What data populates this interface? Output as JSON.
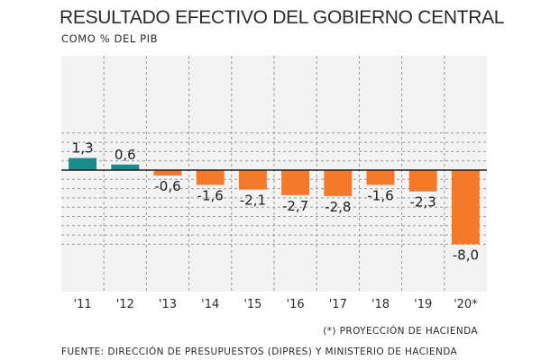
{
  "header": {
    "title": "RESULTADO EFECTIVO DEL GOBIERNO CENTRAL",
    "subtitle": "COMO % DEL PIB"
  },
  "footer": {
    "note": "(*) PROYECCIÓN DE HACIENDA",
    "source": "FUENTE: DIRECCIÓN DE PRESUPUESTOS (DIPRES) Y MINISTERIO DE HACIENDA"
  },
  "colors": {
    "positive": "#1a8a8a",
    "negative": "#f47a2a",
    "grid": "#9a9a9a",
    "zero_line": "#1e1e1e",
    "plot_bg": "#f3f3f3"
  },
  "chart_data": {
    "type": "bar",
    "title": "RESULTADO EFECTIVO DEL GOBIERNO CENTRAL",
    "subtitle": "COMO % DEL PIB",
    "xlabel": "",
    "ylabel": "",
    "categories": [
      "'11",
      "'12",
      "'13",
      "'14",
      "'15",
      "'16",
      "'17",
      "'18",
      "'19",
      "'20*"
    ],
    "values": [
      1.3,
      0.6,
      -0.6,
      -1.6,
      -2.1,
      -2.7,
      -2.8,
      -1.6,
      -2.3,
      -8.0
    ],
    "value_labels": [
      "1,3",
      "0,6",
      "-0,6",
      "-1,6",
      "-2,1",
      "-2,7",
      "-2,8",
      "-1,6",
      "-2,3",
      "-8,0"
    ],
    "ylim": [
      -8.6,
      4.2
    ],
    "gridlines": [
      4,
      3,
      2,
      1,
      0,
      -1,
      -2,
      -3,
      -4,
      -5,
      -6,
      -7,
      -8
    ],
    "grid": true
  }
}
